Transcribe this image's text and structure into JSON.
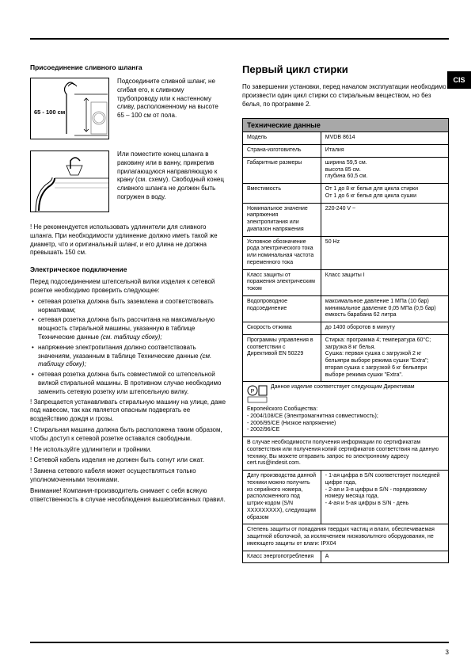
{
  "cis": "CIS",
  "left": {
    "title": "Присоединение сливного шланга",
    "diagram1Label": "65 - 100 см",
    "drain1": "Подсоедините сливной шланг, не сгибая его, к сливному трубопроводу или к настенному сливу, расположенному на высоте 65 – 100 см от пола.",
    "drain2": "Или поместите конец шланга в раковину или в ванну, прикрепив прилагающуюся направляющую к крану (см. схему). Свободный конец сливного шланга не должен быть погружен в воду.",
    "warn1": "! Не рекомендуется использовать удлинители для сливного шланга. При необходимости удлинение должно иметь такой же диаметр, что и оригинальный шланг, и его длина не должна превышать 150 см.",
    "subhead": "Электрическое подключение",
    "para1": "Перед подсоединением штепсельной вилки изделия к сетевой розетке необходимо проверить следующее:",
    "b1": "сетевая розетка должна быть заземлена и соответствовать нормативам;",
    "b2pre": "сетевая розетка должна быть рассчитана на максимальную мощность стиральной машины, указанную в таблице Технические данные ",
    "b2it": "(см. таблицу сбоку);",
    "b3pre": "напряжение электропитания должно соответствовать значениям, указанным в таблице Технические данные ",
    "b3it": "(см. таблицу сбоку);",
    "b4": "сетевая розетка должна быть совместимой со штепсельной вилкой стиральной машины. В противном случае необходимо заменить сетевую розетку или штепсельную вилку.",
    "w2": "! Запрещается устанавливать стиральную машину на улице, даже под навесом, так как является опасным подвергать ее воздействию дождя и грозы.",
    "w3": "! Стиральная машина должна быть расположена таким образом, чтобы доступ к сетевой розетке оставался свободным.",
    "w4": "! Не используйте удлинители и тройники.",
    "w5": "! Сетевой кабель изделия не должен быть согнут или сжат.",
    "w6": "! Замена сетевого кабеля может осуществляться только уполномоченными техниками.",
    "w7": "Внимание! Компания-производитель снимает с себя всякую ответственность в случае несоблюдения вышеописанных правил."
  },
  "right": {
    "h2": "Первый цикл стирки",
    "intro": "По завершении установки, перед началом эксплуатации необходимо произвести один цикл стирки со стиральным веществом, но без белья, по программе 2.",
    "tableHeader": "Технические данные",
    "rows": [
      {
        "l": "Модель",
        "v": "MVDB 8614"
      },
      {
        "l": "Страна-изготовитель",
        "v": "Италия"
      },
      {
        "l": "Габаритные размеры",
        "v": "ширина 59,5 см.\nвысота 85 см.\nглубина 60,5 см."
      },
      {
        "l": "Вместимость",
        "v": "От 1 до 8 кг белья для цикла стирки\nОт 1 до 6 кг белья для цикла сушки"
      },
      {
        "l": "Номинальное значение напряжения электропитания или диапазон напряжения",
        "v": "220-240 V ~"
      },
      {
        "l": "Условное обозначение рода электрического тока или номинальная частота переменного тока",
        "v": "50 Hz"
      },
      {
        "l": "Класс защиты от поражения электрическим током",
        "v": "Класс защиты I"
      },
      {
        "l": "Водопроводное подсоединение",
        "v": "максимальное давление 1 МПа (10 бар)\nминимальное давление 0,05 МПа (0,5 бар)\nемкость барабана 62 литра"
      },
      {
        "l": "Скорость отжима",
        "v": "до 1400 оборотов в минуту"
      },
      {
        "l": "Программы управления в соответствии с Директивой EN 50229",
        "v": "Стирка: программа 4; температура 60°C; загрузка 8 кг белья.\nСушка: первая сушка с загрузкой 2 кг бельяпри выборе режима сушки \"Extra\";\nвторая сушка с загрузкой 6 кг бельяпри выборе режима сушки \"Extra\"."
      },
      {
        "l": "__cert__",
        "v": "Данное изделие соответствует следующим Директивам Европейского Сообщества:\n- 2004/108/СЕ (Электромагнитная совместимость);\n- 2006/95/CE (Низкое напряжение)\n- 2002/96/CE"
      },
      {
        "l": "__full__",
        "v": "В случае необходимости получения информации по сертификатам соответствия или получения копий сертификатов соответствия на данную технику, Вы можете отправить запрос по электронному адресу cert.rus@indesit.com."
      },
      {
        "l": "Дату производства данной техники можно получить из серийного номера, расположенного под штрих-кодом (S/N XXXXXXXXX), следующим образом",
        "v": "- 1-ая цифра в S/N соответствует последней цифре года,\n- 2-ая и 3-я цифры в S/N - порядковому номеру месяца года,\n- 4-ая и 5-ая цифры в S/N - день"
      },
      {
        "l": "__full2__",
        "v": "Степень защиты от попадания твердых частиц и влаги, обеспечиваемая защитной оболочкой, за исключением низковольтного оборудования, не имеющего защиты от влаги: IPX04"
      },
      {
        "l": "Класс энергопотребления",
        "v": "A"
      }
    ]
  },
  "pageNum": "3"
}
